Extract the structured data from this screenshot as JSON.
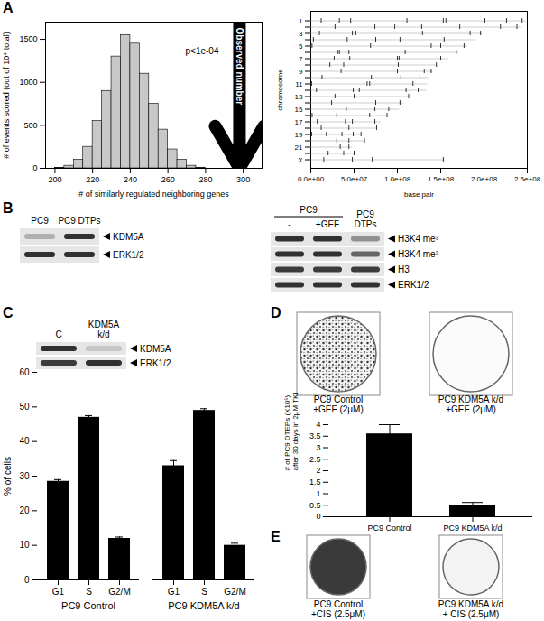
{
  "chart_data": [
    {
      "type": "histogram",
      "xlabel": "# of similarly regulated neighboring genes",
      "ylabel": "# of events scored (out of 10⁴ total)",
      "bins": [
        200,
        205,
        210,
        215,
        220,
        225,
        230,
        235,
        240,
        245,
        250,
        255,
        260,
        265,
        270,
        275,
        280
      ],
      "counts": [
        5,
        30,
        100,
        250,
        550,
        900,
        1300,
        1550,
        1450,
        1100,
        750,
        450,
        220,
        100,
        30,
        8
      ],
      "color": "#c8c8c8",
      "xlim": [
        195,
        310
      ],
      "xticks": [
        200,
        220,
        240,
        260,
        280,
        300
      ],
      "ylim": [
        0,
        1700
      ],
      "yticks": [
        0,
        500,
        1000,
        1500
      ],
      "annotations": [
        "p<1e-04",
        "Observed number"
      ],
      "observed_value": 298
    },
    {
      "type": "scatter",
      "marker": "tick",
      "color": "#000000",
      "xlabel": "base pair",
      "ylabel": "chromosome",
      "categories": [
        "1",
        null,
        "3",
        null,
        "5",
        null,
        "7",
        null,
        "9",
        null,
        "11",
        null,
        "13",
        null,
        "15",
        null,
        "17",
        null,
        "19",
        null,
        "21",
        null,
        "X"
      ],
      "chromosome_lengths": [
        249000000.0,
        243000000.0,
        198000000.0,
        191000000.0,
        181000000.0,
        171000000.0,
        159000000.0,
        146000000.0,
        141000000.0,
        136000000.0,
        135000000.0,
        134000000.0,
        115000000.0,
        107000000.0,
        103000000.0,
        90000000.0,
        81000000.0,
        78000000.0,
        59000000.0,
        63000000.0,
        48000000.0,
        51000000.0,
        155000000.0
      ],
      "gene_positions": [
        [
          12000000.0,
          33000000.0,
          46000000.0,
          111000000.0,
          153000000.0,
          156000000.0,
          201000000.0,
          226000000.0,
          244000000.0
        ],
        [
          28000000.0,
          74000000.0,
          97000000.0,
          128000000.0,
          172000000.0,
          219000000.0,
          238000000.0
        ],
        [
          10000000.0,
          48000000.0,
          52000000.0,
          129000000.0,
          184000000.0,
          196000000.0
        ],
        [
          3000000.0,
          42000000.0,
          75000000.0,
          103000000.0,
          154000000.0
        ],
        [
          1400000.0,
          69000000.0,
          139000000.0,
          150000000.0,
          177000000.0
        ],
        [
          31000000.0,
          33000000.0,
          44000000.0,
          109000000.0,
          168000000.0
        ],
        [
          27000000.0,
          45000000.0,
          100000000.0,
          102000000.0,
          150000000.0
        ],
        [
          22000000.0,
          38000000.0,
          101000000.0,
          145000000.0
        ],
        [
          35000000.0,
          100000000.0,
          131000000.0,
          139000000.0
        ],
        [
          13000000.0,
          70000000.0,
          104000000.0,
          126000000.0
        ],
        [
          1000000.0,
          65000000.0,
          68000000.0,
          118000000.0
        ],
        [
          6500000.0,
          49000000.0,
          56000000.0,
          110000000.0,
          124000000.0
        ],
        [
          28000000.0,
          50000000.0,
          113000000.0
        ],
        [
          24000000.0,
          75000000.0,
          103000000.0
        ],
        [
          41000000.0,
          74000000.0,
          90000000.0
        ],
        [
          1500000.0,
          30000000.0,
          68000000.0,
          88000000.0
        ],
        [
          7500000.0,
          40000000.0,
          48000000.0,
          74000000.0
        ],
        [
          12000000.0,
          44000000.0,
          76000000.0
        ],
        [
          1000000.0,
          18000000.0,
          36000000.0,
          49000000.0,
          58000000.0
        ],
        [
          30000000.0,
          44000000.0,
          62000000.0
        ],
        [
          34000000.0,
          44000000.0
        ],
        [
          20000000.0,
          38000000.0,
          50000000.0
        ],
        [
          15000000.0,
          48000000.0,
          71000000.0,
          153000000.0
        ]
      ],
      "xlim": [
        0,
        250000000.0
      ],
      "xticks": [
        {
          "value": 0,
          "label": "0.0e+00"
        },
        {
          "value": 50000000.0,
          "label": "5.0e+07"
        },
        {
          "value": 100000000.0,
          "label": "1.0e+08"
        },
        {
          "value": 150000000.0,
          "label": "1.5e+08"
        },
        {
          "value": 200000000.0,
          "label": "2.0e+08"
        },
        {
          "value": 250000000.0,
          "label": "2.5e+08"
        }
      ]
    },
    {
      "type": "bar",
      "ylabel": "% of cells",
      "categories": [
        "G1",
        "S",
        "G2/M"
      ],
      "series": [
        {
          "name": "PC9 Control",
          "color": "#000000",
          "values": [
            28.5,
            47,
            12
          ],
          "errors": [
            0.5,
            0.5,
            0.4
          ]
        },
        {
          "name": "PC9 KDM5A k/d",
          "color": "#000000",
          "values": [
            33,
            49,
            10
          ],
          "errors": [
            1.5,
            0.5,
            0.6
          ]
        }
      ],
      "ylim": [
        0,
        60
      ],
      "yticks": [
        0,
        10,
        20,
        30,
        40,
        50,
        60
      ]
    },
    {
      "type": "bar",
      "ylabel": "# of PC9 DTEPs (X10⁵)\nafter 30 days in 2μM TKI",
      "categories": [
        "PC9 Control",
        "PC9 KDM5A k/d"
      ],
      "values": [
        3.6,
        0.5
      ],
      "errors": [
        0.4,
        0.12
      ],
      "color": "#000000",
      "ylim": [
        0,
        4
      ],
      "yticks": [
        0,
        0.5,
        1,
        1.5,
        2,
        2.5,
        3,
        3.5,
        4
      ]
    }
  ],
  "figure": {
    "letters": [
      "A",
      "B",
      "C",
      "D",
      "E"
    ],
    "blots": [
      {
        "lanes": [
          "PC9",
          "PC9 DTPs"
        ],
        "rows": [
          "KDM5A",
          "ERK1/2"
        ]
      },
      {
        "group": "PC9",
        "lanes": [
          "-",
          "+GEF",
          "PC9\nDTPs"
        ],
        "rows": [
          "H3K4 me³",
          "H3K4 me²",
          "H3",
          "ERK1/2"
        ]
      },
      {
        "lanes": [
          "C",
          "KDM5A\nk/d"
        ],
        "rows": [
          "KDM5A",
          "ERK1/2"
        ]
      }
    ],
    "dishes": [
      {
        "labels": [
          "PC9 Control\n+GEF (2μM)",
          "PC9 KDM5A k/d\n+GEF (2μM)"
        ]
      },
      {
        "labels": [
          "PC9 Control\n+CIS (2.5μM)",
          "PC9 KDM5A k/d\n+ CIS (2.5μM)"
        ]
      }
    ]
  }
}
